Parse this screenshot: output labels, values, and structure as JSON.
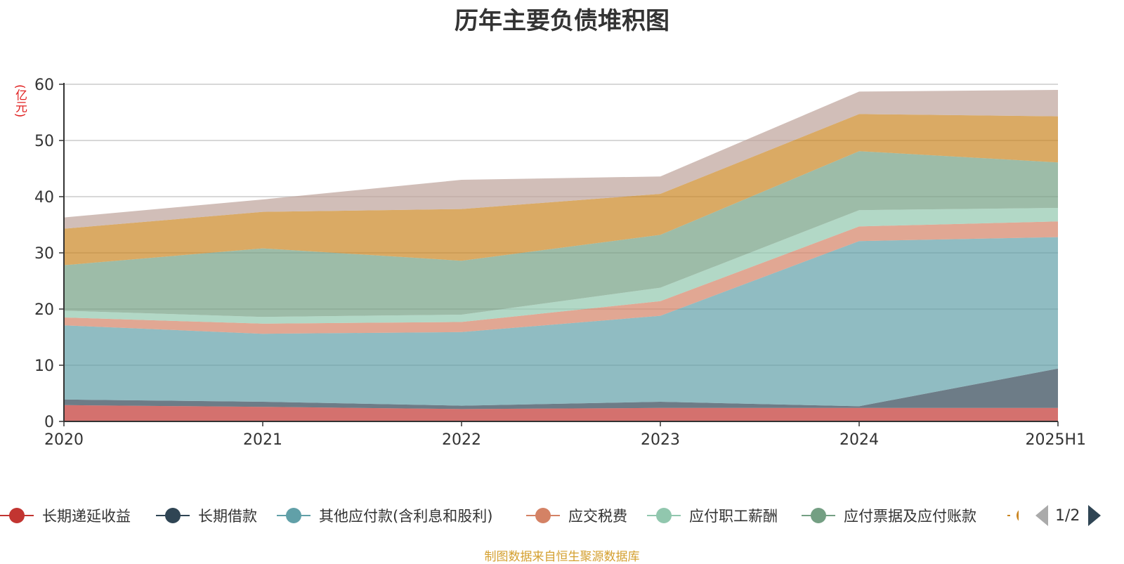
{
  "title": "历年主要负债堆积图",
  "unit_label": "(亿元)",
  "footer": "制图数据来自恒生聚源数据库",
  "legend_page": "1/2",
  "chart_data": {
    "type": "area",
    "stacked": true,
    "title": "历年主要负债堆积图",
    "ylabel": "(亿元)",
    "x": [
      "2020",
      "2021",
      "2022",
      "2023",
      "2024",
      "2025H1"
    ],
    "ylim": [
      0,
      60
    ],
    "yticks": [
      0,
      10,
      20,
      30,
      40,
      50,
      60
    ],
    "grid": true,
    "legend_position": "bottom",
    "series": [
      {
        "name": "长期递延收益",
        "color": "#c23531",
        "values": [
          2.9,
          2.6,
          2.2,
          2.4,
          2.4,
          2.4
        ]
      },
      {
        "name": "长期借款",
        "color": "#2f4554",
        "values": [
          1.0,
          0.9,
          0.6,
          1.1,
          0.3,
          7.0
        ]
      },
      {
        "name": "其他应付款(含利息和股利)",
        "color": "#61a0a8",
        "values": [
          13.2,
          12.1,
          13.1,
          15.3,
          29.4,
          23.4
        ]
      },
      {
        "name": "应交税费",
        "color": "#d48265",
        "values": [
          1.4,
          1.8,
          1.8,
          2.6,
          2.6,
          2.8
        ]
      },
      {
        "name": "应付职工薪酬",
        "color": "#91c7ae",
        "values": [
          1.2,
          1.2,
          1.3,
          2.4,
          2.9,
          2.4
        ]
      },
      {
        "name": "应付票据及应付账款",
        "color": "#749f83",
        "values": [
          8.1,
          12.2,
          9.6,
          9.4,
          10.5,
          8.1
        ]
      },
      {
        "name": "",
        "color": "#ca8622",
        "values": [
          6.5,
          6.5,
          9.2,
          7.3,
          6.6,
          8.2
        ]
      },
      {
        "name": "",
        "color": "#bda29a",
        "values": [
          2.0,
          2.2,
          5.2,
          3.1,
          4.0,
          4.7
        ]
      }
    ]
  }
}
